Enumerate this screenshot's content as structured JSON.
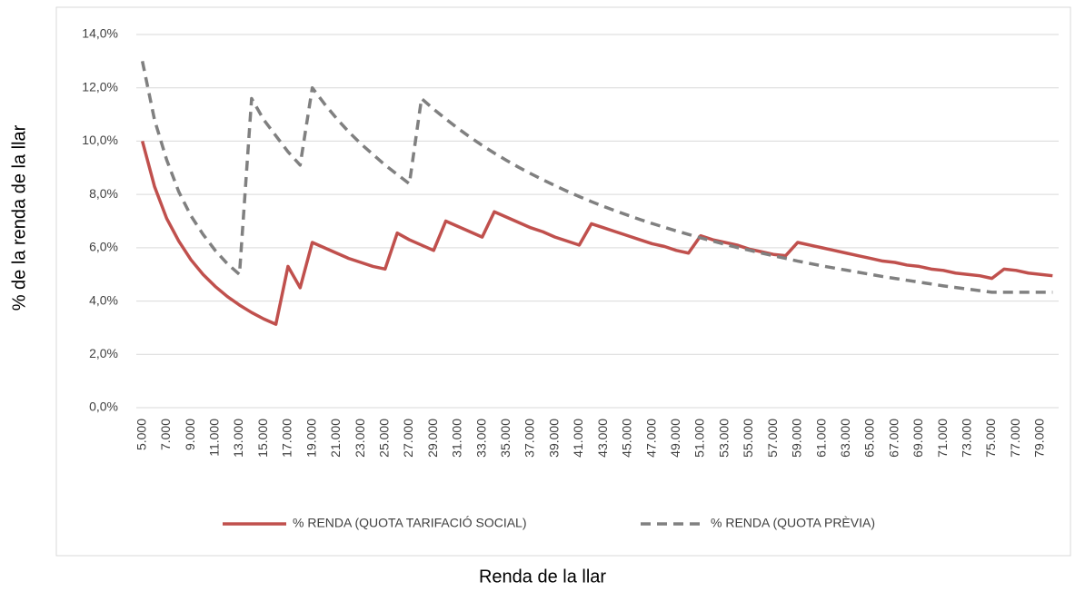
{
  "chart_data": {
    "type": "line",
    "x_label": "Renda de la llar",
    "y_label": "% de la renda de la llar",
    "categories": [
      "5.000",
      null,
      "7.000",
      null,
      "9.000",
      null,
      "11.000",
      null,
      "13.000",
      null,
      "15.000",
      null,
      "17.000",
      null,
      "19.000",
      null,
      "21.000",
      null,
      "23.000",
      null,
      "25.000",
      null,
      "27.000",
      null,
      "29.000",
      null,
      "31.000",
      null,
      "33.000",
      null,
      "35.000",
      null,
      "37.000",
      null,
      "39.000",
      null,
      "41.000",
      null,
      "43.000",
      null,
      "45.000",
      null,
      "47.000",
      null,
      "49.000",
      null,
      "51.000",
      null,
      "53.000",
      null,
      "55.000",
      null,
      "57.000",
      null,
      "59.000",
      null,
      "61.000",
      null,
      "63.000",
      null,
      "65.000",
      null,
      "67.000",
      null,
      "69.000",
      null,
      "71.000",
      null,
      "73.000",
      null,
      "75.000",
      null,
      "77.000",
      null,
      "79.000",
      null
    ],
    "series": [
      {
        "name": "% RENDA (QUOTA TARIFACIÓ SOCIAL)",
        "color": "#c0504d",
        "dashed": false,
        "values": [
          10.0,
          8.3,
          7.1,
          6.25,
          5.55,
          5.0,
          4.55,
          4.17,
          3.85,
          3.57,
          3.33,
          3.13,
          5.3,
          4.5,
          6.2,
          6.0,
          5.8,
          5.6,
          5.45,
          5.3,
          5.2,
          6.55,
          6.3,
          6.1,
          5.9,
          7.0,
          6.8,
          6.6,
          6.4,
          7.35,
          7.15,
          6.95,
          6.75,
          6.6,
          6.4,
          6.25,
          6.1,
          6.9,
          6.75,
          6.6,
          6.45,
          6.3,
          6.15,
          6.05,
          5.9,
          5.8,
          6.45,
          6.3,
          6.2,
          6.1,
          5.95,
          5.85,
          5.75,
          5.7,
          6.2,
          6.1,
          6.0,
          5.9,
          5.8,
          5.7,
          5.6,
          5.5,
          5.45,
          5.35,
          5.3,
          5.2,
          5.15,
          5.05,
          5.0,
          4.95,
          4.85,
          5.2,
          5.15,
          5.05,
          5.0,
          4.95
        ]
      },
      {
        "name": "% RENDA (QUOTA PRÈVIA)",
        "color": "#808080",
        "dashed": true,
        "values": [
          13.0,
          10.8,
          9.3,
          8.1,
          7.2,
          6.5,
          5.9,
          5.4,
          5.0,
          11.6,
          10.8,
          10.2,
          9.6,
          9.1,
          12.0,
          11.4,
          10.85,
          10.35,
          9.9,
          9.5,
          9.1,
          8.75,
          8.4,
          11.6,
          11.2,
          10.83,
          10.48,
          10.15,
          9.84,
          9.55,
          9.28,
          9.02,
          8.78,
          8.55,
          8.33,
          8.12,
          7.92,
          7.73,
          7.55,
          7.38,
          7.22,
          7.06,
          6.91,
          6.77,
          6.63,
          6.5,
          6.37,
          6.25,
          6.13,
          6.01,
          5.91,
          5.8,
          5.7,
          5.6,
          5.5,
          5.41,
          5.32,
          5.24,
          5.16,
          5.08,
          5.0,
          4.92,
          4.85,
          4.78,
          4.71,
          4.64,
          4.57,
          4.51,
          4.45,
          4.39,
          4.33,
          4.33,
          4.33,
          4.33,
          4.33,
          4.33
        ]
      }
    ],
    "ylim": [
      0,
      14
    ],
    "yticks": [
      {
        "value": 0,
        "label": "0,0%"
      },
      {
        "value": 2,
        "label": "2,0%"
      },
      {
        "value": 4,
        "label": "4,0%"
      },
      {
        "value": 6,
        "label": "6,0%"
      },
      {
        "value": 8,
        "label": "8,0%"
      },
      {
        "value": 10,
        "label": "10,0%"
      },
      {
        "value": 12,
        "label": "12,0%"
      },
      {
        "value": 14,
        "label": "14,0%"
      }
    ],
    "grid": true,
    "legend": "bottom"
  }
}
